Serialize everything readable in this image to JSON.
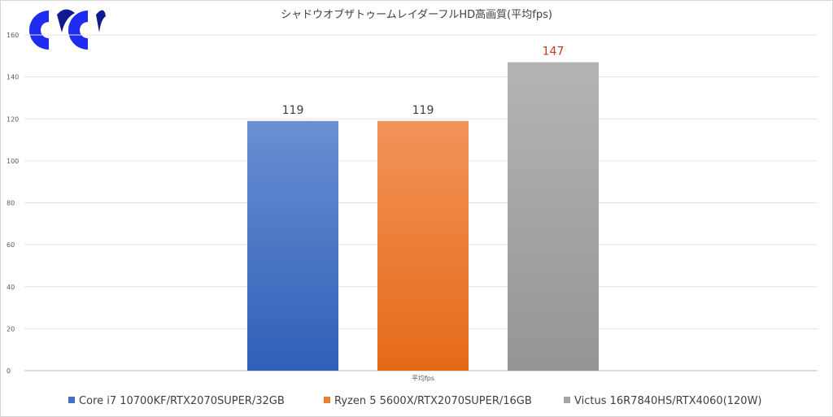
{
  "chart_data": {
    "type": "bar",
    "title": "シャドウオブザトゥームレイダーフルHD高画質(平均fps)",
    "categories": [
      "平均fps"
    ],
    "series": [
      {
        "name": "Core i7 10700KF/RTX2070SUPER/32GB",
        "values": [
          119
        ],
        "color": "#4472c4",
        "color_light": "#6a8fd3",
        "color_dark": "#2f5fb7",
        "label_color": "#404040"
      },
      {
        "name": "Ryzen 5 5600X/RTX2070SUPER/16GB",
        "values": [
          119
        ],
        "color": "#ed7d31",
        "color_light": "#f2935a",
        "color_dark": "#e56a16",
        "label_color": "#404040"
      },
      {
        "name": "Victus 16R7840HS/RTX4060(120W)",
        "values": [
          147
        ],
        "color": "#a5a5a5",
        "color_light": "#b4b4b4",
        "color_dark": "#959595",
        "label_color": "#c0392b"
      }
    ],
    "ylim": [
      0,
      160
    ],
    "yticks": [
      0,
      20,
      40,
      60,
      80,
      100,
      120,
      140,
      160
    ],
    "grid": true,
    "legend": "bottom",
    "xlabel": "",
    "ylabel": ""
  }
}
